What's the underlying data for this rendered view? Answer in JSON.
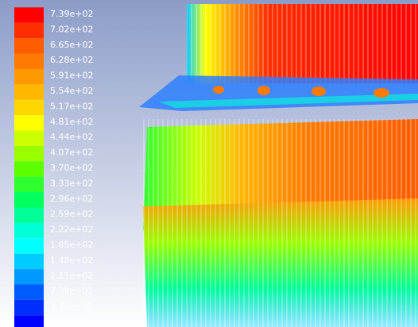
{
  "legend": {
    "entries": [
      {
        "label": "7.39e+02",
        "color": "#ff0000"
      },
      {
        "label": "7.02e+02",
        "color": "#ff2e00"
      },
      {
        "label": "6.65e+02",
        "color": "#ff5c00"
      },
      {
        "label": "6.28e+02",
        "color": "#ff7a00"
      },
      {
        "label": "5.91e+02",
        "color": "#ff9900"
      },
      {
        "label": "5.54e+02",
        "color": "#ffb800"
      },
      {
        "label": "5.17e+02",
        "color": "#ffd700"
      },
      {
        "label": "4.81e+02",
        "color": "#ffff00"
      },
      {
        "label": "4.44e+02",
        "color": "#ccff00"
      },
      {
        "label": "4.07e+02",
        "color": "#99ff00"
      },
      {
        "label": "3.70e+02",
        "color": "#5cff00"
      },
      {
        "label": "3.33e+02",
        "color": "#2eff2e"
      },
      {
        "label": "2.96e+02",
        "color": "#00ff5c"
      },
      {
        "label": "2.59e+02",
        "color": "#00ff99"
      },
      {
        "label": "2.22e+02",
        "color": "#00ffd7"
      },
      {
        "label": "1.85e+02",
        "color": "#00ffff"
      },
      {
        "label": "1.48e+02",
        "color": "#00ccff"
      },
      {
        "label": "1.11e+02",
        "color": "#0099ff"
      },
      {
        "label": "7.39e+01",
        "color": "#005cff"
      },
      {
        "label": "3.70e+01",
        "color": "#002eff"
      },
      {
        "label": "4.42e-04",
        "color": "#0000ff"
      }
    ]
  }
}
